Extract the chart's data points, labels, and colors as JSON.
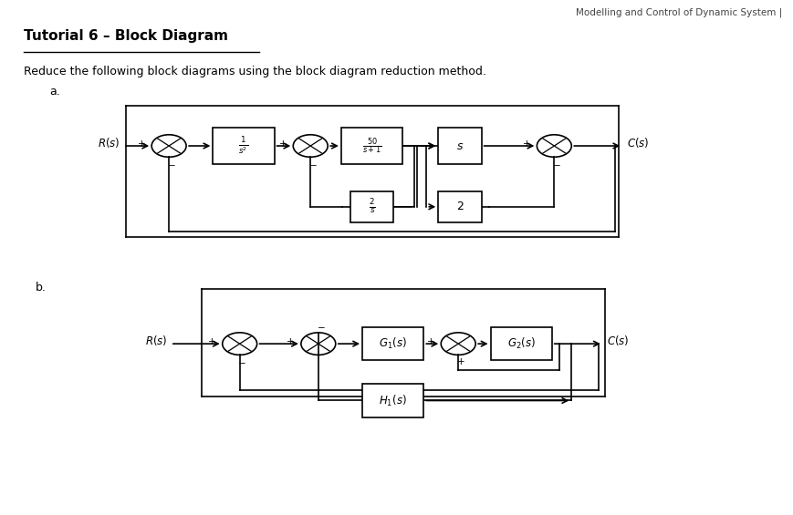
{
  "title": "Tutorial 6 – Block Diagram",
  "subtitle": "Reduce the following block diagrams using the block diagram reduction method.",
  "header": "Modelling and Control of Dynamic System |",
  "bg_color": "#ffffff",
  "diagram_a_label": "a.",
  "diagram_b_label": "b."
}
